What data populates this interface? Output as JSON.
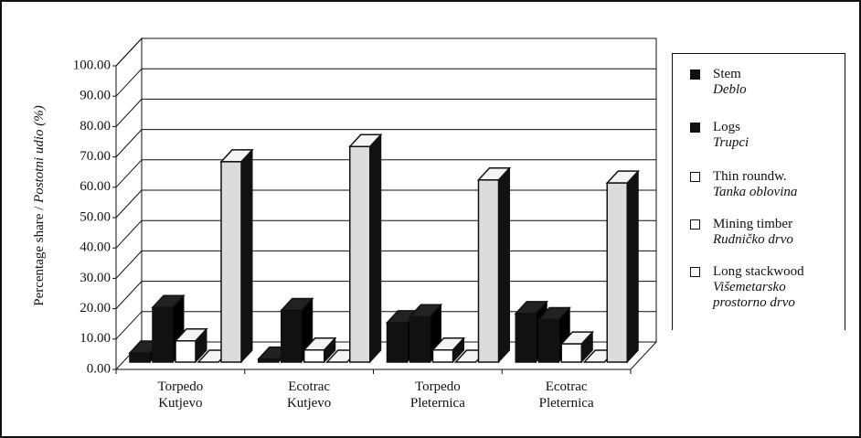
{
  "chart_data": {
    "type": "bar3d",
    "ylabel": "Percentage share /",
    "ylabel_hr": "Postotni udio (%)",
    "categories": [
      "Torpedo Kutjevo",
      "Ecotrac Kutjevo",
      "Torpedo Pleternica",
      "Ecotrac Pleternica"
    ],
    "series": [
      {
        "name": "Stem",
        "name_hr": "Deblo",
        "color": "#111111",
        "values": [
          3,
          1,
          13,
          16
        ]
      },
      {
        "name": "Logs",
        "name_hr": "Trupci",
        "color": "#111111",
        "values": [
          18,
          17,
          15,
          14
        ]
      },
      {
        "name": "Thin roundw.",
        "name_hr": "Tanka oblovina",
        "color": "#ffffff",
        "values": [
          7,
          4,
          4,
          6
        ]
      },
      {
        "name": "Mining timber",
        "name_hr": "Rudničko drvo",
        "color": "#ffffff",
        "values": [
          0,
          0,
          0,
          0
        ]
      },
      {
        "name": "Long stackwood",
        "name_hr": "Višemetarsko prostorno drvo",
        "color": "#dcdcdc",
        "values": [
          66,
          71,
          60,
          59
        ]
      }
    ],
    "ylim": [
      0,
      100
    ],
    "yticks": [
      {
        "value": 0,
        "label": "0.00"
      },
      {
        "value": 10,
        "label": "10.00"
      },
      {
        "value": 20,
        "label": "20.00"
      },
      {
        "value": 30,
        "label": "30.00"
      },
      {
        "value": 40,
        "label": "40.00"
      },
      {
        "value": 50,
        "label": "50.00"
      },
      {
        "value": 60,
        "label": "60.00"
      },
      {
        "value": 70,
        "label": "70.00"
      },
      {
        "value": 80,
        "label": "80.00"
      },
      {
        "value": 90,
        "label": "90.00"
      },
      {
        "value": 100,
        "label": "100.00"
      }
    ],
    "grid": true
  }
}
